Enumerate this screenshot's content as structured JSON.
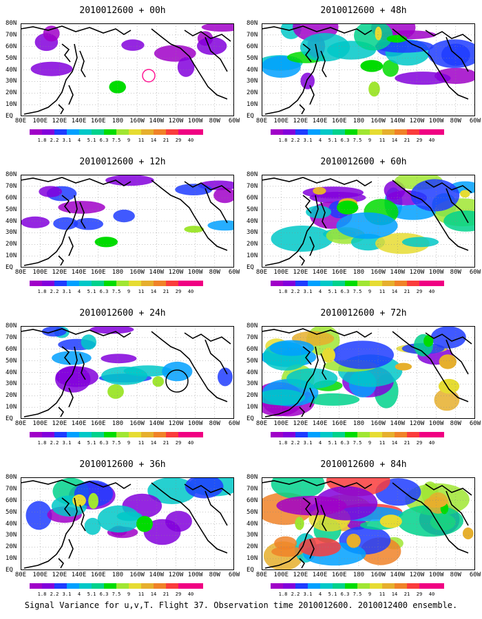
{
  "panels": [
    {
      "title": "2010012600 + 00h",
      "level": 0.1,
      "circle": "pink"
    },
    {
      "title": "2010012600 + 48h",
      "level": 0.45,
      "circle": ""
    },
    {
      "title": "2010012600 + 12h",
      "level": 0.2,
      "circle": ""
    },
    {
      "title": "2010012600 + 60h",
      "level": 0.55,
      "circle": ""
    },
    {
      "title": "2010012600 + 24h",
      "level": 0.28,
      "circle": "black"
    },
    {
      "title": "2010012600 + 72h",
      "level": 0.65,
      "circle": ""
    },
    {
      "title": "2010012600 + 36h",
      "level": 0.36,
      "circle": ""
    },
    {
      "title": "2010012600 + 84h",
      "level": 0.78,
      "circle": ""
    }
  ],
  "lat_labels": [
    "80N",
    "70N",
    "60N",
    "50N",
    "40N",
    "30N",
    "20N",
    "10N",
    "EQ"
  ],
  "lon_labels": [
    "80E",
    "100E",
    "120E",
    "140E",
    "160E",
    "180",
    "160W",
    "140W",
    "120W",
    "100W",
    "80W",
    "60W"
  ],
  "colorbar": {
    "labels": [
      "1.8",
      "2.2",
      "3.1",
      "4",
      "5.1",
      "6.3",
      "7.5",
      "9",
      "11",
      "14",
      "21",
      "29",
      "40"
    ],
    "colors": [
      "#a000c8",
      "#8200dc",
      "#1e3cff",
      "#00a0ff",
      "#00c8c8",
      "#00d28c",
      "#00dc00",
      "#a0e632",
      "#e6dc32",
      "#e6af2d",
      "#f08228",
      "#fa3c3c",
      "#f00082"
    ]
  },
  "footer": "Signal Variance for u,v,T. Flight 37. Observation time 2010012600. 2010012400 ensemble."
}
